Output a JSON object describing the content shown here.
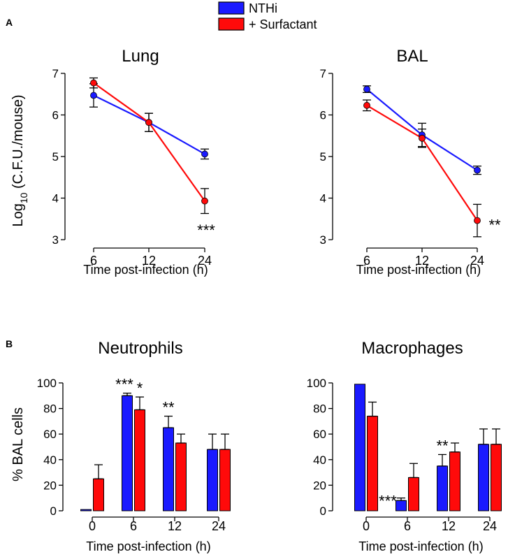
{
  "colors": {
    "nthi": "#1a1aff",
    "surfactant": "#ff0a0a",
    "axis": "#000000"
  },
  "legend": {
    "items": [
      {
        "label": "NTHi",
        "color": "#1a1aff"
      },
      {
        "label": "+ Surfactant",
        "color": "#ff0a0a"
      }
    ]
  },
  "panel_labels": {
    "a": "A",
    "b": "B"
  },
  "chart_data": [
    {
      "id": "lung",
      "type": "line",
      "title": "Lung",
      "ylabel_main": "Log",
      "ylabel_sub": "10",
      "ylabel_rest": " (C.F.U./mouse)",
      "xlabel": "Time post-infection (h)",
      "categories": [
        "6",
        "12",
        "24"
      ],
      "ylim": [
        3,
        7
      ],
      "yticks": [
        3,
        4,
        5,
        6,
        7
      ],
      "series": [
        {
          "name": "NTHi",
          "values": [
            6.47,
            5.82,
            5.06
          ],
          "errors": [
            0.28,
            0.22,
            0.12
          ]
        },
        {
          "name": "+ Surfactant",
          "values": [
            6.77,
            5.82,
            3.93
          ],
          "errors": [
            0.12,
            0.22,
            0.3
          ]
        }
      ],
      "annotations": [
        {
          "category": "24",
          "text": "***"
        }
      ]
    },
    {
      "id": "bal",
      "type": "line",
      "title": "BAL",
      "xlabel": "Time post-infection (h)",
      "categories": [
        "6",
        "12",
        "24"
      ],
      "ylim": [
        3,
        7
      ],
      "yticks": [
        3,
        4,
        5,
        6,
        7
      ],
      "series": [
        {
          "name": "NTHi",
          "values": [
            6.62,
            5.52,
            4.67
          ],
          "errors": [
            0.08,
            0.28,
            0.1
          ]
        },
        {
          "name": "+ Surfactant",
          "values": [
            6.23,
            5.44,
            3.46
          ],
          "errors": [
            0.13,
            0.22,
            0.39
          ]
        }
      ],
      "annotations": [
        {
          "category": "24",
          "text": "**"
        }
      ]
    },
    {
      "id": "neutrophils",
      "type": "bar",
      "title": "Neutrophils",
      "ylabel": "% BAL cells",
      "xlabel": "Time post-infection (h)",
      "categories": [
        "0",
        "6",
        "12",
        "24"
      ],
      "ylim": [
        0,
        100
      ],
      "yticks": [
        0,
        20,
        40,
        60,
        80,
        100
      ],
      "series": [
        {
          "name": "NTHi",
          "values": [
            1,
            90,
            65,
            48
          ],
          "errors": [
            0,
            2,
            9,
            12
          ]
        },
        {
          "name": "+ Surfactant",
          "values": [
            25,
            79,
            53,
            48
          ],
          "errors": [
            11,
            10,
            7,
            12
          ]
        }
      ],
      "annotations": [
        {
          "category": "6",
          "series": 0,
          "text": "***"
        },
        {
          "category": "6",
          "series": 1,
          "text": "*"
        },
        {
          "category": "12",
          "series": 0,
          "text": "**"
        }
      ]
    },
    {
      "id": "macrophages",
      "type": "bar",
      "title": "Macrophages",
      "xlabel": "Time post-infection (h)",
      "categories": [
        "0",
        "6",
        "12",
        "24"
      ],
      "ylim": [
        0,
        100
      ],
      "yticks": [
        0,
        20,
        40,
        60,
        80,
        100
      ],
      "series": [
        {
          "name": "NTHi",
          "values": [
            99,
            8,
            35,
            52
          ],
          "errors": [
            0,
            2,
            9,
            12
          ]
        },
        {
          "name": "+ Surfactant",
          "values": [
            74,
            26,
            46,
            52
          ],
          "errors": [
            11,
            11,
            7,
            12
          ]
        }
      ],
      "annotations": [
        {
          "category": "6",
          "series": 0,
          "text": "***"
        },
        {
          "category": "12",
          "series": 0,
          "text": "**"
        }
      ]
    }
  ]
}
